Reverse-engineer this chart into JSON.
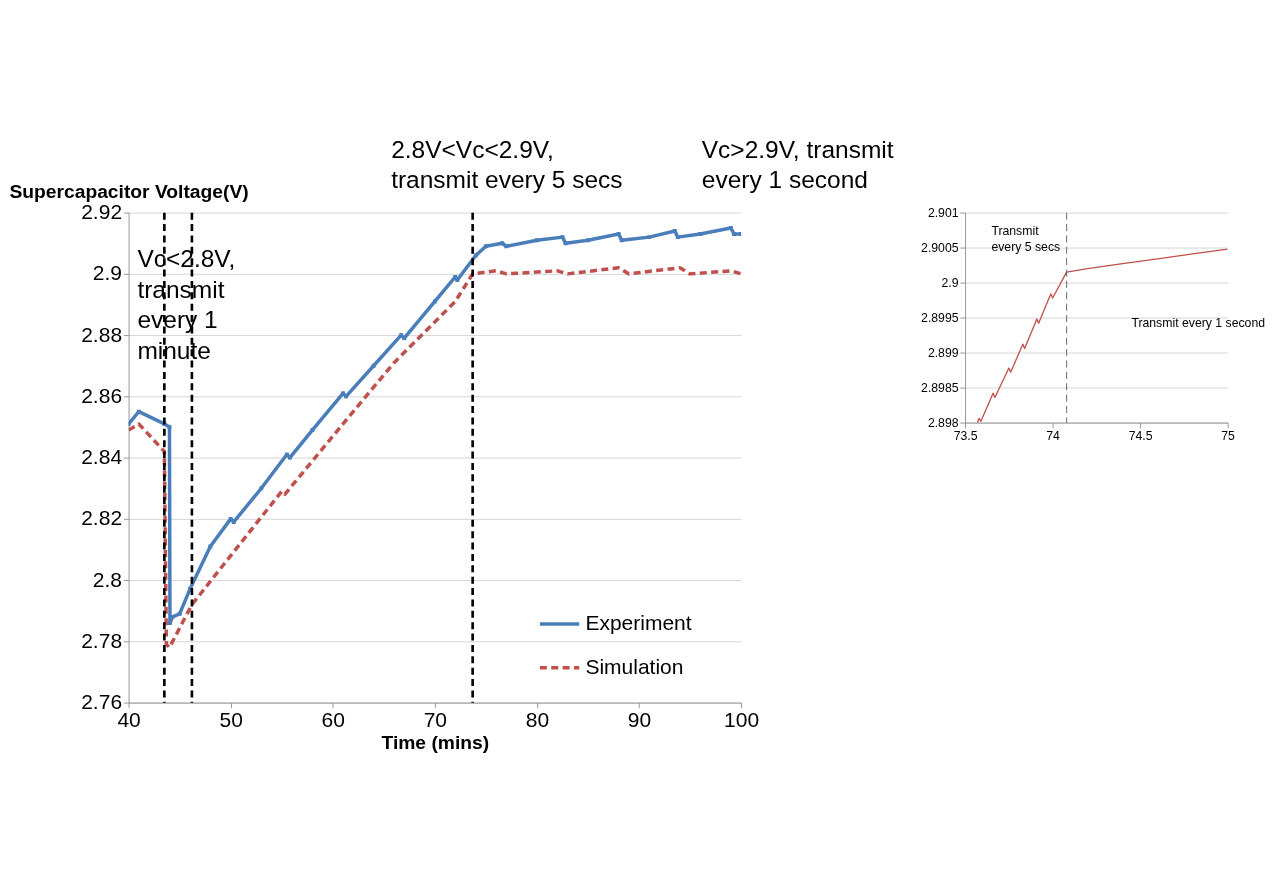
{
  "chart_data": [
    {
      "type": "line",
      "xlabel": "Time (mins)",
      "ylabel": "Supercapacitor Voltage(V)",
      "xlim": [
        40,
        100
      ],
      "xticks": [
        40,
        50,
        60,
        70,
        80,
        90,
        100
      ],
      "ylim": [
        2.76,
        2.92
      ],
      "yticks": [
        2.76,
        2.78,
        2.8,
        2.82,
        2.84,
        2.86,
        2.88,
        2.9,
        2.92
      ],
      "grid": "y",
      "legend": "bottom right",
      "series": [
        {
          "name": "Experiment",
          "color": "#4a7ebb",
          "line_style": "solid",
          "marker": "square",
          "x": [
            40,
            41,
            43.5,
            44,
            44.05,
            44.3,
            45,
            46,
            48,
            50,
            50.3,
            53,
            55.5,
            55.8,
            58,
            61,
            61.3,
            64,
            66.7,
            67,
            70,
            72,
            72.2,
            74,
            75,
            76.6,
            77,
            80,
            82.5,
            82.8,
            85,
            88,
            88.3,
            91,
            93.5,
            93.8,
            96,
            99,
            99.3,
            100
          ],
          "values": [
            2.851,
            2.855,
            2.851,
            2.85,
            2.786,
            2.788,
            2.789,
            2.797,
            2.811,
            2.82,
            2.819,
            2.83,
            2.841,
            2.84,
            2.849,
            2.861,
            2.86,
            2.87,
            2.88,
            2.879,
            2.891,
            2.899,
            2.898,
            2.906,
            2.909,
            2.91,
            2.909,
            2.911,
            2.912,
            2.91,
            2.911,
            2.913,
            2.911,
            2.912,
            2.914,
            2.912,
            2.913,
            2.915,
            2.913,
            2.913
          ]
        },
        {
          "name": "Simulation",
          "color": "#c0504d",
          "line_style": "dashed",
          "marker": "none",
          "x": [
            40,
            41,
            43.5,
            43.7,
            44,
            46.2,
            50,
            55,
            55.3,
            61,
            66,
            72,
            73.7,
            76,
            77,
            82,
            83,
            88,
            89,
            94,
            95,
            99,
            100
          ],
          "values": [
            2.849,
            2.851,
            2.842,
            2.779,
            2.778,
            2.792,
            2.808,
            2.829,
            2.828,
            2.851,
            2.871,
            2.891,
            2.9,
            2.901,
            2.9,
            2.901,
            2.9,
            2.902,
            2.9,
            2.902,
            2.9,
            2.901,
            2.9
          ]
        }
      ],
      "ref_lines": [
        {
          "axis": "x",
          "value": 43.5,
          "color": "#000000",
          "line_style": "dashed"
        },
        {
          "axis": "x",
          "value": 46.2,
          "color": "#000000",
          "line_style": "dashed"
        },
        {
          "axis": "x",
          "value": 73.7,
          "color": "#000000",
          "line_style": "dashed"
        }
      ],
      "annotations": [
        "Vc<2.8V,\ntransmit\nevery 1\nminute",
        "2.8V<Vc<2.9V,\ntransmit every 5 secs",
        "Vc>2.9V, transmit\nevery 1 second"
      ]
    },
    {
      "type": "line",
      "xlim": [
        73.5,
        75
      ],
      "xticks": [
        73.5,
        74,
        74.5,
        75
      ],
      "ylim": [
        2.898,
        2.901
      ],
      "yticks": [
        2.898,
        2.8985,
        2.899,
        2.8995,
        2.9,
        2.9005,
        2.901
      ],
      "grid": "y",
      "legend": false,
      "series": [
        {
          "color": "#c0504d",
          "line_style": "solid",
          "marker": "none",
          "x": [
            73.57,
            73.58,
            73.59,
            73.66,
            73.67,
            73.75,
            73.76,
            73.83,
            73.84,
            73.91,
            73.92,
            73.99,
            74.0,
            74.08,
            74.2,
            74.4,
            74.6,
            74.8,
            75
          ],
          "values": [
            2.898,
            2.89806,
            2.89802,
            2.89842,
            2.89836,
            2.89878,
            2.89872,
            2.89912,
            2.89906,
            2.89948,
            2.89942,
            2.89984,
            2.89978,
            2.90015,
            2.9002,
            2.90027,
            2.90034,
            2.90041,
            2.90048
          ]
        }
      ],
      "ref_lines": [
        {
          "axis": "x",
          "value": 74.08,
          "color": "#555555",
          "line_style": "dashed"
        }
      ],
      "annotations": [
        "Transmit\nevery 5 secs",
        "Transmit every 1 second"
      ]
    }
  ]
}
